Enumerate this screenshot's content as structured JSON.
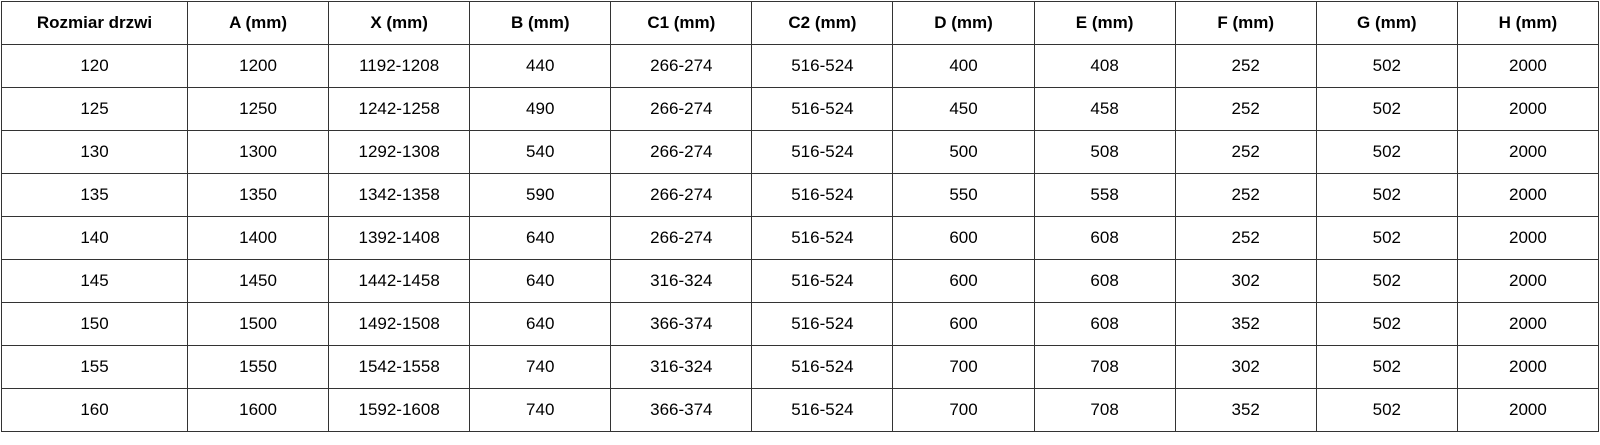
{
  "table": {
    "headers": [
      "Rozmiar drzwi",
      "A (mm)",
      "X (mm)",
      "B (mm)",
      "C1 (mm)",
      "C2 (mm)",
      "D (mm)",
      "E (mm)",
      "F (mm)",
      "G (mm)",
      "H (mm)"
    ],
    "rows": [
      [
        "120",
        "1200",
        "1192-1208",
        "440",
        "266-274",
        "516-524",
        "400",
        "408",
        "252",
        "502",
        "2000"
      ],
      [
        "125",
        "1250",
        "1242-1258",
        "490",
        "266-274",
        "516-524",
        "450",
        "458",
        "252",
        "502",
        "2000"
      ],
      [
        "130",
        "1300",
        "1292-1308",
        "540",
        "266-274",
        "516-524",
        "500",
        "508",
        "252",
        "502",
        "2000"
      ],
      [
        "135",
        "1350",
        "1342-1358",
        "590",
        "266-274",
        "516-524",
        "550",
        "558",
        "252",
        "502",
        "2000"
      ],
      [
        "140",
        "1400",
        "1392-1408",
        "640",
        "266-274",
        "516-524",
        "600",
        "608",
        "252",
        "502",
        "2000"
      ],
      [
        "145",
        "1450",
        "1442-1458",
        "640",
        "316-324",
        "516-524",
        "600",
        "608",
        "302",
        "502",
        "2000"
      ],
      [
        "150",
        "1500",
        "1492-1508",
        "640",
        "366-374",
        "516-524",
        "600",
        "608",
        "352",
        "502",
        "2000"
      ],
      [
        "155",
        "1550",
        "1542-1558",
        "740",
        "316-324",
        "516-524",
        "700",
        "708",
        "302",
        "502",
        "2000"
      ],
      [
        "160",
        "1600",
        "1592-1608",
        "740",
        "366-374",
        "516-524",
        "700",
        "708",
        "352",
        "502",
        "2000"
      ]
    ]
  }
}
